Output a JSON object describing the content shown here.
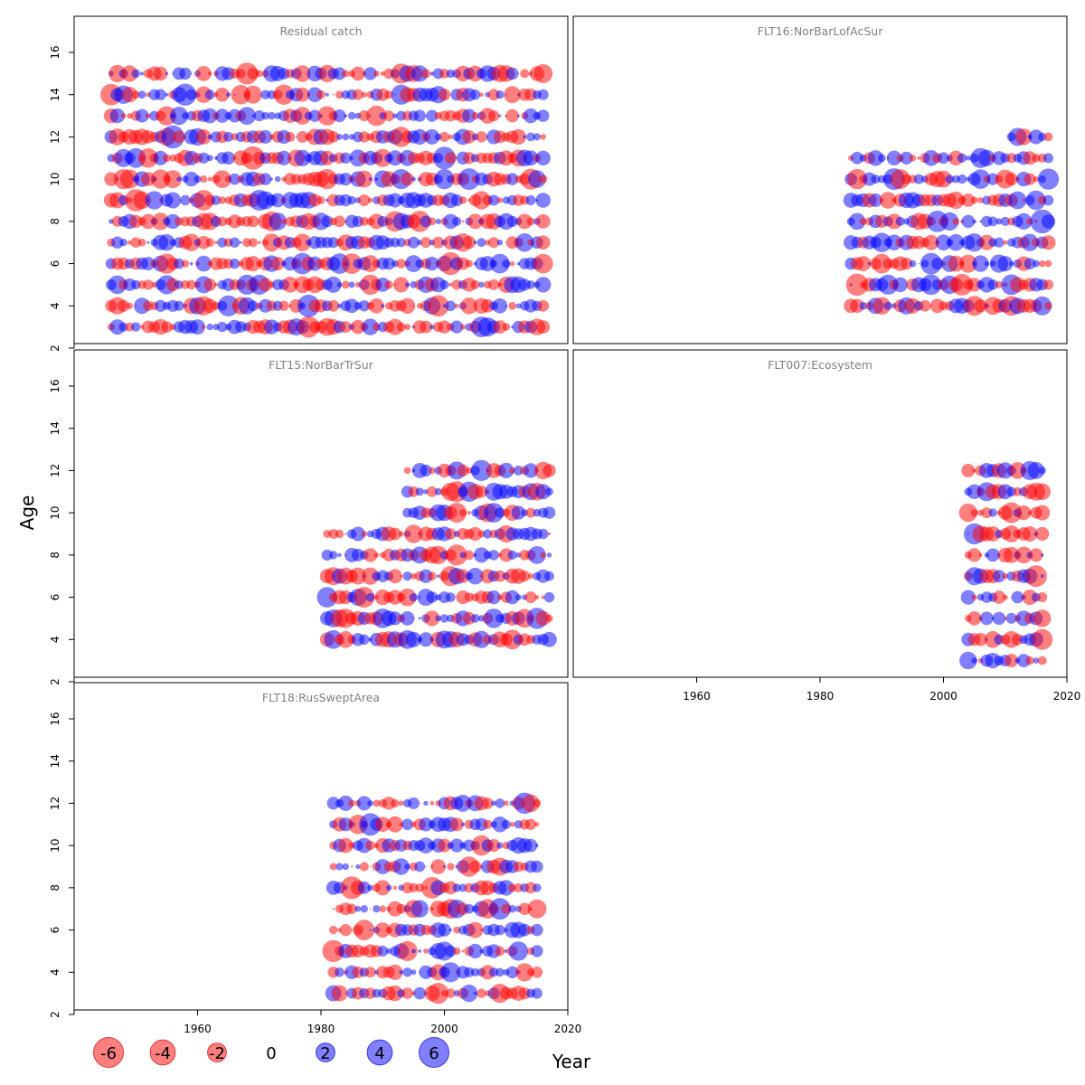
{
  "chart_data": {
    "type": "scatter",
    "subtype": "bubble-residuals",
    "xlabel": "Year",
    "ylabel": "Age",
    "xlim": [
      1940,
      2020
    ],
    "ylim": [
      2,
      16
    ],
    "x_ticks": [
      1960,
      1980,
      2000,
      2020
    ],
    "y_ticks": [
      2,
      4,
      6,
      8,
      10,
      12,
      14,
      16
    ],
    "colors": {
      "negative": "#ff0000",
      "positive": "#0000ff",
      "alpha": 0.5
    },
    "panels": [
      {
        "title": "Residual catch",
        "years": [
          1946,
          2016
        ],
        "ages": [
          3,
          15
        ],
        "seed": 11
      },
      {
        "title": "FLT16:NorBarLofAcSur",
        "years": [
          1985,
          2017
        ],
        "ages": [
          4,
          11
        ],
        "extra_rows": [
          {
            "age": 12,
            "years": [
              2011,
              2017
            ]
          }
        ],
        "seed": 23
      },
      {
        "title": "FLT15:NorBarTrSur",
        "years": [
          1981,
          2017
        ],
        "ages": [
          4,
          9
        ],
        "extra_rows": [
          {
            "age": 10,
            "years": [
              1994,
              2017
            ]
          },
          {
            "age": 11,
            "years": [
              1994,
              2017
            ]
          },
          {
            "age": 12,
            "years": [
              1994,
              2017
            ]
          }
        ],
        "seed": 37
      },
      {
        "title": "FLT007:Ecosystem",
        "years": [
          2004,
          2016
        ],
        "ages": [
          3,
          12
        ],
        "seed": 41
      },
      {
        "title": "FLT18:RusSweptArea",
        "years": [
          1982,
          2015
        ],
        "ages": [
          3,
          12
        ],
        "seed": 53
      }
    ],
    "legend": {
      "entries": [
        {
          "label": "-6",
          "value": -6
        },
        {
          "label": "-4",
          "value": -4
        },
        {
          "label": "-2",
          "value": -2
        },
        {
          "label": "0",
          "value": 0
        },
        {
          "label": "2",
          "value": 2
        },
        {
          "label": "4",
          "value": 4
        },
        {
          "label": "6",
          "value": 6
        }
      ]
    }
  }
}
